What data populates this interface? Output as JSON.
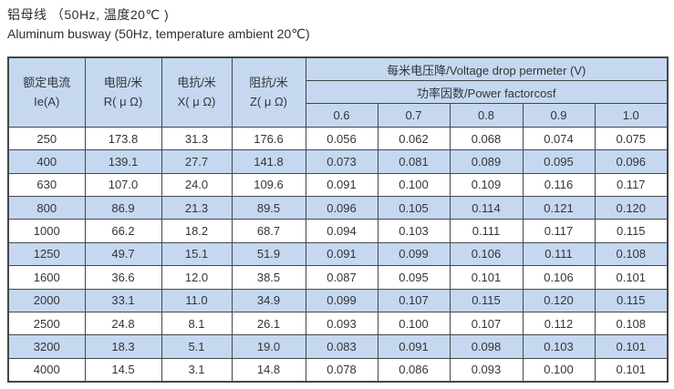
{
  "title": {
    "zh": "铝母线 （50Hz, 温度20℃ )",
    "en": "Aluminum busway (50Hz, temperature ambient 20℃)"
  },
  "colors": {
    "row_alt_bg": "#c5d8f0",
    "header_bg": "#c5d8f0",
    "grid_border": "#43474b",
    "text": "#333537"
  },
  "table": {
    "col_headers": {
      "current_zh": "额定电流",
      "current_unit": "Ie(A)",
      "resistance_zh": "电阻/米",
      "resistance_unit": "R( μ Ω)",
      "reactance_zh": "电抗/米",
      "reactance_unit": "X( μ Ω)",
      "impedance_zh": "阻抗/米",
      "impedance_unit": "Z( μ Ω)",
      "voltage_drop": "每米电压降/Voltage drop permeter (V)",
      "power_factor": "功率因数/Power factorcosf",
      "cos_values": [
        "0.6",
        "0.7",
        "0.8",
        "0.9",
        "1.0"
      ]
    },
    "rows": [
      [
        "250",
        "173.8",
        "31.3",
        "176.6",
        "0.056",
        "0.062",
        "0.068",
        "0.074",
        "0.075"
      ],
      [
        "400",
        "139.1",
        "27.7",
        "141.8",
        "0.073",
        "0.081",
        "0.089",
        "0.095",
        "0.096"
      ],
      [
        "630",
        "107.0",
        "24.0",
        "109.6",
        "0.091",
        "0.100",
        "0.109",
        "0.116",
        "0.117"
      ],
      [
        "800",
        "86.9",
        "21.3",
        "89.5",
        "0.096",
        "0.105",
        "0.114",
        "0.121",
        "0.120"
      ],
      [
        "1000",
        "66.2",
        "18.2",
        "68.7",
        "0.094",
        "0.103",
        "0.111",
        "0.117",
        "0.115"
      ],
      [
        "1250",
        "49.7",
        "15.1",
        "51.9",
        "0.091",
        "0.099",
        "0.106",
        "0.111",
        "0.108"
      ],
      [
        "1600",
        "36.6",
        "12.0",
        "38.5",
        "0.087",
        "0.095",
        "0.101",
        "0.106",
        "0.101"
      ],
      [
        "2000",
        "33.1",
        "11.0",
        "34.9",
        "0.099",
        "0.107",
        "0.115",
        "0.120",
        "0.115"
      ],
      [
        "2500",
        "24.8",
        "8.1",
        "26.1",
        "0.093",
        "0.100",
        "0.107",
        "0.112",
        "0.108"
      ],
      [
        "3200",
        "18.3",
        "5.1",
        "19.0",
        "0.083",
        "0.091",
        "0.098",
        "0.103",
        "0.101"
      ],
      [
        "4000",
        "14.5",
        "3.1",
        "14.8",
        "0.078",
        "0.086",
        "0.093",
        "0.100",
        "0.101"
      ]
    ]
  }
}
